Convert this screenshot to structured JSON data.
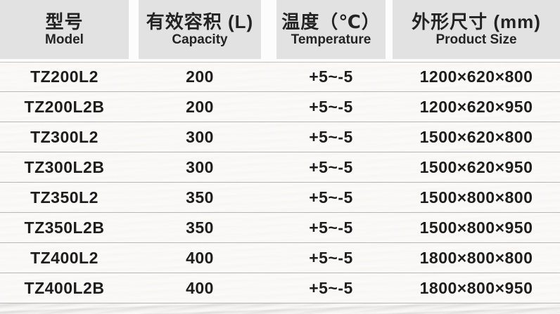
{
  "table": {
    "columns": [
      {
        "cn": "型号",
        "en": "Model"
      },
      {
        "cn": "有效容积 (L)",
        "en": "Capacity"
      },
      {
        "cn": "温度（℃）",
        "en": "Temperature"
      },
      {
        "cn": "外形尺寸 (mm)",
        "en": "Product Size"
      }
    ],
    "rows": [
      {
        "model": "TZ200L2",
        "capacity": "200",
        "temperature": "+5~-5",
        "size": "1200×620×800"
      },
      {
        "model": "TZ200L2B",
        "capacity": "200",
        "temperature": "+5~-5",
        "size": "1200×620×950"
      },
      {
        "model": "TZ300L2",
        "capacity": "300",
        "temperature": "+5~-5",
        "size": "1500×620×800"
      },
      {
        "model": "TZ300L2B",
        "capacity": "300",
        "temperature": "+5~-5",
        "size": "1500×620×950"
      },
      {
        "model": "TZ350L2",
        "capacity": "350",
        "temperature": "+5~-5",
        "size": "1500×800×800"
      },
      {
        "model": "TZ350L2B",
        "capacity": "350",
        "temperature": "+5~-5",
        "size": "1500×800×950"
      },
      {
        "model": "TZ400L2",
        "capacity": "400",
        "temperature": "+5~-5",
        "size": "1800×800×800"
      },
      {
        "model": "TZ400L2B",
        "capacity": "400",
        "temperature": "+5~-5",
        "size": "1800×800×950"
      }
    ]
  },
  "colors": {
    "header_bg": "#e2e2e2",
    "row_bg": "#f8f7f5",
    "separator": "#b7b7b7",
    "text": "#1d1d1d",
    "page_bg": "#edecea"
  }
}
